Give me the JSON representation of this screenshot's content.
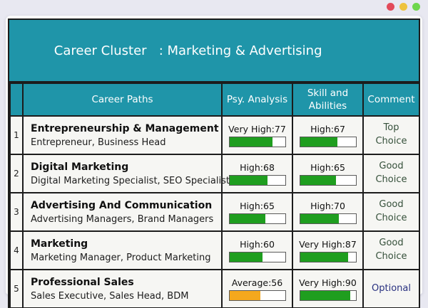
{
  "window": {
    "dots": {
      "red": "#e24a5a",
      "yellow": "#eec33e",
      "green": "#6ed64d"
    }
  },
  "title_bar": {
    "title": "Career Cluster   : Marketing & Advertising"
  },
  "table": {
    "headers": {
      "career_paths": "Career Paths",
      "psy_analysis": "Psy. Analysis",
      "skill_abilities": "Skill and Abilities",
      "comment": "Comment"
    },
    "rows": [
      {
        "num": "1",
        "title": "Entrepreneurship & Management",
        "subtitle": "Entrepreneur, Business Head",
        "psy": {
          "label": "Very High:77",
          "width": "77%",
          "color": "#1f9e1f"
        },
        "skill": {
          "label": "High:67",
          "width": "67%",
          "color": "#1f9e1f"
        },
        "comment": {
          "label": "Top Choice",
          "color": "#35503a"
        }
      },
      {
        "num": "2",
        "title": "Digital Marketing",
        "subtitle": "Digital Marketing Specialist, SEO Specialist",
        "psy": {
          "label": "High:68",
          "width": "68%",
          "color": "#1f9e1f"
        },
        "skill": {
          "label": "High:65",
          "width": "65%",
          "color": "#1f9e1f"
        },
        "comment": {
          "label": "Good Choice",
          "color": "#35503a"
        }
      },
      {
        "num": "3",
        "title": "Advertising And Communication",
        "subtitle": "Advertising Managers, Brand Managers",
        "psy": {
          "label": "High:65",
          "width": "65%",
          "color": "#1f9e1f"
        },
        "skill": {
          "label": "High:70",
          "width": "70%",
          "color": "#1f9e1f"
        },
        "comment": {
          "label": "Good Choice",
          "color": "#35503a"
        }
      },
      {
        "num": "4",
        "title": "Marketing",
        "subtitle": "Marketing Manager, Product Marketing",
        "psy": {
          "label": "High:60",
          "width": "60%",
          "color": "#1f9e1f"
        },
        "skill": {
          "label": "Very High:87",
          "width": "87%",
          "color": "#1f9e1f"
        },
        "comment": {
          "label": "Good Choice",
          "color": "#35503a"
        }
      },
      {
        "num": "5",
        "title": "Professional Sales",
        "subtitle": "Sales Executive, Sales Head, BDM",
        "psy": {
          "label": "Average:56",
          "width": "56%",
          "color": "#f4a81d"
        },
        "skill": {
          "label": "Very High:90",
          "width": "90%",
          "color": "#1f9e1f"
        },
        "comment": {
          "label": "Optional",
          "color": "#293180"
        }
      }
    ]
  },
  "colors": {
    "teal_header": "#1f95a9",
    "green_bar": "#1f9e1f",
    "orange_bar": "#f4a81d",
    "table_border": "#1c1c1c"
  }
}
